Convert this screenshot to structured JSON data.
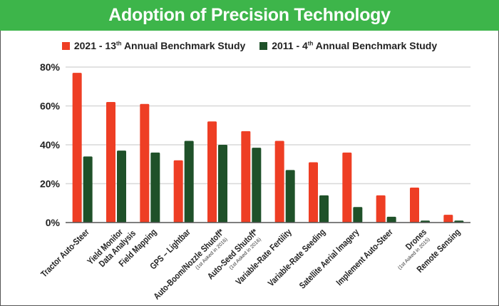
{
  "chart_data": {
    "type": "bar",
    "title": "Adoption of Precision Technology",
    "xlabel": "",
    "ylabel": "",
    "ylim": [
      0,
      80
    ],
    "yticks": [
      "0%",
      "20%",
      "40%",
      "60%",
      "80%"
    ],
    "ytick_values": [
      0,
      20,
      40,
      60,
      80
    ],
    "grid": true,
    "legend_position": "top-center",
    "categories": [
      {
        "label": "Tractor Auto-Steer",
        "label2": "",
        "note": ""
      },
      {
        "label": "Yield Monitor",
        "label2": "Data Analysis",
        "note": ""
      },
      {
        "label": "Field Mapping",
        "label2": "",
        "note": ""
      },
      {
        "label": "GPS – Lightbar",
        "label2": "",
        "note": ""
      },
      {
        "label": "Auto-Boom/Nozzle Shutoff*",
        "label2": "",
        "note": "(1st Asked in 2016)"
      },
      {
        "label": "Auto-Seed Shutoff*",
        "label2": "",
        "note": "(1st Asked in 2016)"
      },
      {
        "label": "Variable-Rate Fertility",
        "label2": "",
        "note": ""
      },
      {
        "label": "Variable-Rate Seeding",
        "label2": "",
        "note": ""
      },
      {
        "label": "Satellite Aerial Imagery",
        "label2": "",
        "note": ""
      },
      {
        "label": "Implement Auto-Steer",
        "label2": "",
        "note": ""
      },
      {
        "label": "Drones",
        "label2": "",
        "note": "(1st Asked in 2015)"
      },
      {
        "label": "Remote Sensing",
        "label2": "",
        "note": ""
      }
    ],
    "series": [
      {
        "name": "2021 - 13th Annual Benchmark Study",
        "name_main": "2021 - 13",
        "name_sup": "th",
        "name_rest": " Annual Benchmark Study",
        "color": "#ee3e24",
        "values": [
          77,
          62,
          61,
          32,
          52,
          47,
          42,
          31,
          36,
          14,
          18,
          4
        ]
      },
      {
        "name": "2011 - 4th Annual Benchmark Study",
        "name_main": "2011 - 4",
        "name_sup": "th",
        "name_rest": " Annual Benchmark Study",
        "color": "#1f5129",
        "values": [
          34,
          37,
          36,
          42,
          40,
          38.5,
          27,
          14,
          8,
          3,
          1,
          1
        ]
      }
    ]
  },
  "header_color": "#3db54a"
}
